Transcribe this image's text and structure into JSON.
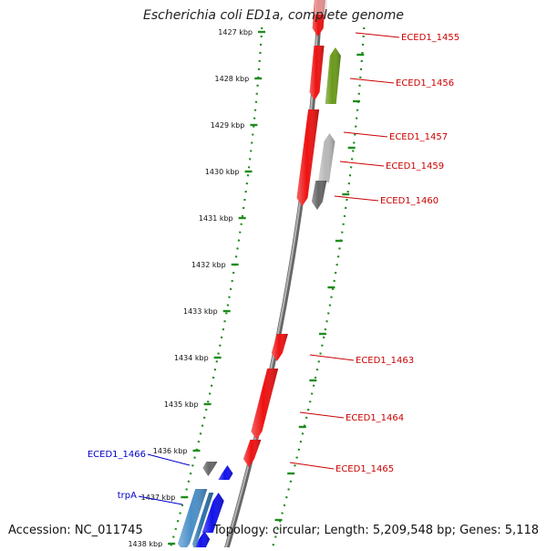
{
  "title": "Escherichia coli ED1a, complete genome",
  "footer": {
    "accession": "Accession: NC_011745",
    "summary": "Topology: circular; Length: 5,209,548 bp; Genes: 5,118"
  },
  "colors": {
    "backbone": "#888888",
    "ruler": "#1f8c1f",
    "gene_red": "#ee1111",
    "gene_green": "#6a9a1a",
    "gene_gray": "#b8b8b8",
    "gene_darkgray": "#666666",
    "gene_blue": "#1111ee",
    "gene_steelblue": "#4a8fc8",
    "label_red": "#cc0000",
    "label_blue": "#0000cc"
  },
  "ruler_ticks": [
    "1427 kbp",
    "1428 kbp",
    "1429 kbp",
    "1430 kbp",
    "1431 kbp",
    "1432 kbp",
    "1433 kbp",
    "1434 kbp",
    "1435 kbp",
    "1436 kbp",
    "1437 kbp",
    "1438 kbp"
  ],
  "genes": [
    {
      "label": "ECED1_1455",
      "color": "gene_red",
      "strand": "+",
      "side": "right"
    },
    {
      "label": "ECED1_1456",
      "color": "gene_green",
      "strand": "-",
      "side": "right"
    },
    {
      "label": "ECED1_1457",
      "color": "gene_red",
      "strand": "+",
      "side": "right"
    },
    {
      "label": "ECED1_1459",
      "color": "gene_gray",
      "strand": "-",
      "side": "right"
    },
    {
      "label": "ECED1_1460",
      "color": "gene_darkgray",
      "strand": "-",
      "side": "right"
    },
    {
      "label": "ECED1_1463",
      "color": "gene_red",
      "strand": "+",
      "side": "right"
    },
    {
      "label": "ECED1_1464",
      "color": "gene_red",
      "strand": "+",
      "side": "right"
    },
    {
      "label": "ECED1_1465",
      "color": "gene_red",
      "strand": "+",
      "side": "right"
    },
    {
      "label": "ECED1_1466",
      "color": "gene_darkgray",
      "strand": "+",
      "side": "left"
    },
    {
      "label": "trpA",
      "color": "gene_steelblue",
      "strand": "+",
      "side": "left"
    }
  ],
  "extra_features": [
    {
      "color": "gene_blue",
      "strand": "-"
    },
    {
      "color": "gene_blue",
      "strand": "-"
    },
    {
      "color": "gene_blue",
      "strand": "-"
    }
  ]
}
